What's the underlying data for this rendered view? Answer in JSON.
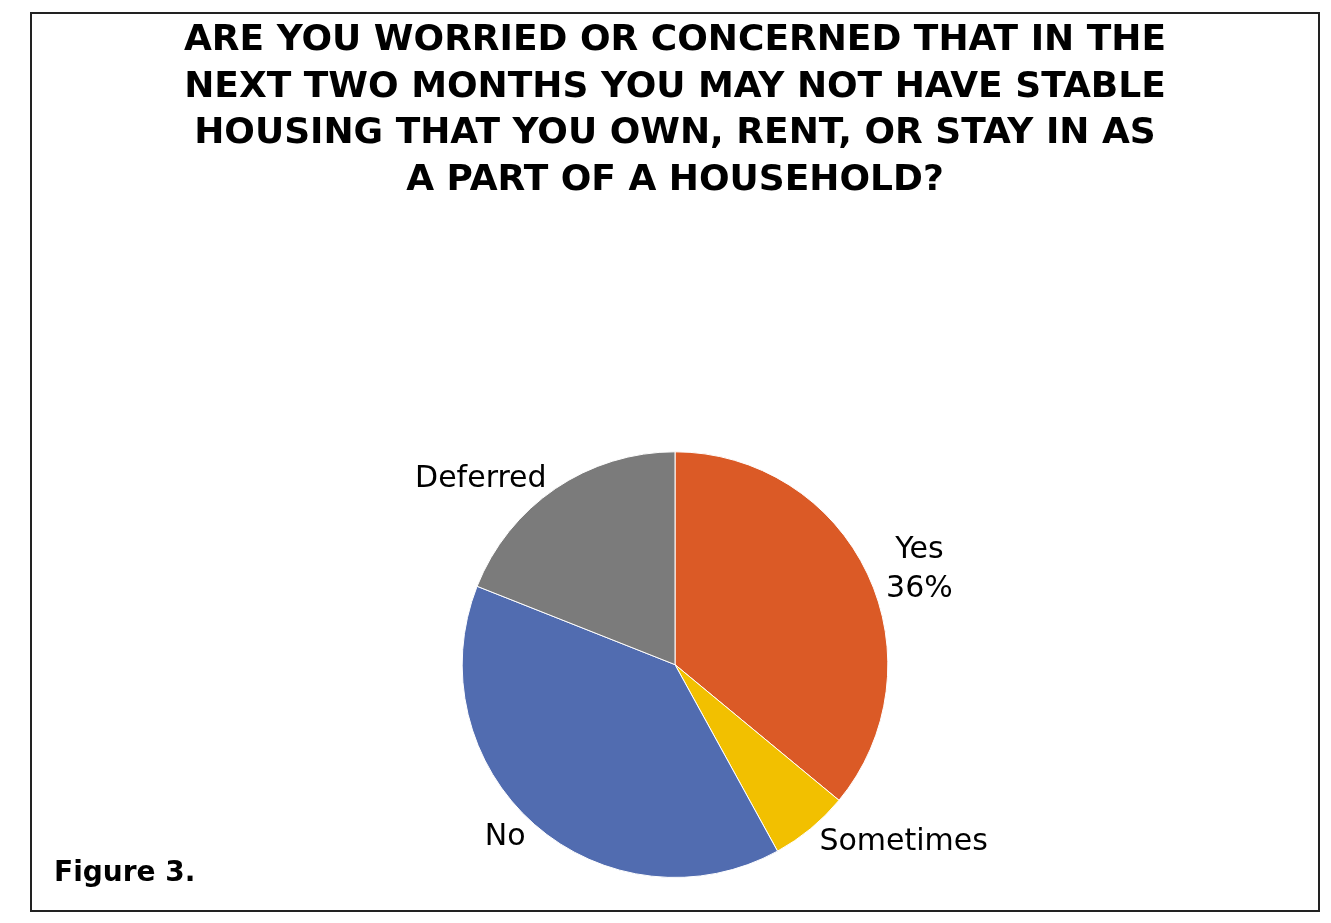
{
  "chart_data": {
    "type": "pie",
    "title": "ARE YOU WORRIED OR CONCERNED THAT IN THE NEXT TWO MONTHS YOU MAY NOT HAVE STABLE HOUSING THAT YOU OWN, RENT, OR STAY IN AS A PART OF A HOUSEHOLD?",
    "categories": [
      "Yes",
      "Sometimes",
      "No",
      "Deferred"
    ],
    "values": [
      36,
      6,
      39,
      19
    ],
    "value_labels": [
      "36%",
      null,
      null,
      null
    ],
    "colors": [
      "#db5a26",
      "#f2c000",
      "#516cb0",
      "#7b7b7b"
    ],
    "annotations": [
      "Figure 3."
    ],
    "legend": false
  }
}
